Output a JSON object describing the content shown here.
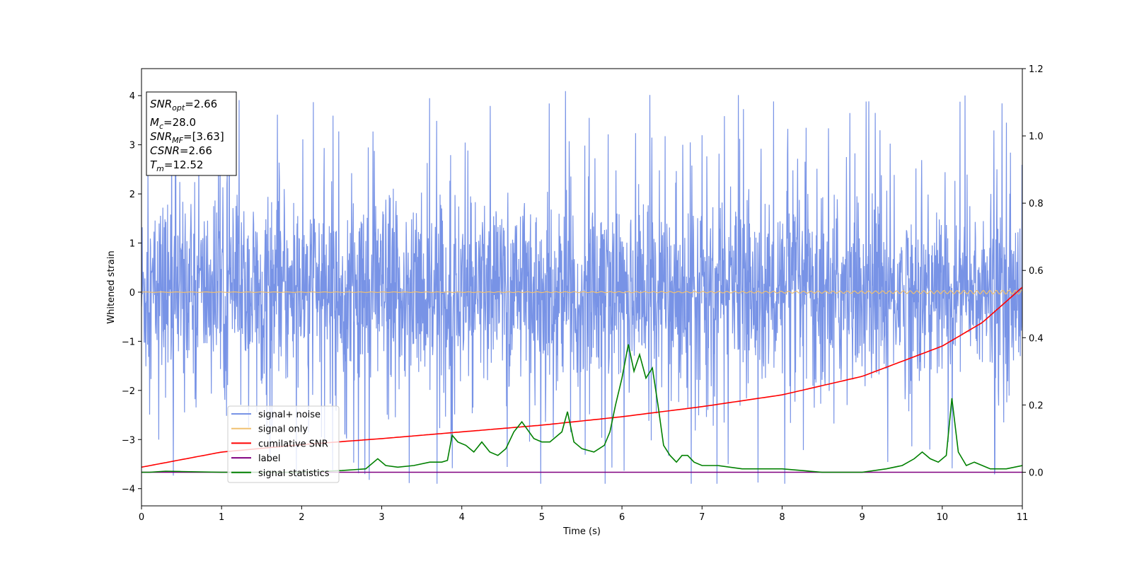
{
  "chart_data": {
    "type": "line",
    "xlabel": "Time (s)",
    "ylabel": "Whitened strain",
    "xlim": [
      0,
      11
    ],
    "ylim": [
      -4.35,
      4.55
    ],
    "y2lim": [
      -0.1,
      1.2
    ],
    "x_ticks": [
      0,
      1,
      2,
      3,
      4,
      5,
      6,
      7,
      8,
      9,
      10,
      11
    ],
    "y_ticks": [
      -4,
      -3,
      -2,
      -1,
      0,
      1,
      2,
      3,
      4
    ],
    "y2_ticks": [
      "0.0",
      "0.2",
      "0.4",
      "0.6",
      "0.8",
      "1.0",
      "1.2"
    ],
    "legend_placement": "lower-left",
    "info_box": [
      {
        "sym": "SNR",
        "sub": "opt",
        "val": "=2.66"
      },
      {
        "sym": "M",
        "sub": "c",
        "val": "=28.0"
      },
      {
        "sym": "SNR",
        "sub": "MF",
        "val": "=[3.63]"
      },
      {
        "sym": "CSNR",
        "sub": "",
        "val": "=2.66"
      },
      {
        "sym": "T",
        "sub": "m",
        "val": "=12.52"
      }
    ],
    "series": [
      {
        "name": "signal+ noise",
        "axis": "left",
        "color": "#7893e6",
        "description_values": "whitened noise, amplitude ~±2.3 with spikes to ±4",
        "noise_sigma": 1.0,
        "spike_max": 4.17,
        "spike_min": -3.9
      },
      {
        "name": "signal only",
        "axis": "left",
        "color": "#f0c070",
        "x_end": 11,
        "amp_start": 0.005,
        "amp_end": 0.04
      },
      {
        "name": "cumilative SNR",
        "axis": "right",
        "color": "#ff0000",
        "x": [
          0,
          1,
          2,
          3,
          4,
          5,
          6,
          7,
          8,
          9,
          10,
          10.5,
          11
        ],
        "y": [
          0.015,
          0.06,
          0.082,
          0.1,
          0.12,
          0.14,
          0.165,
          0.195,
          0.23,
          0.285,
          0.375,
          0.445,
          0.55
        ]
      },
      {
        "name": "label",
        "axis": "right",
        "color": "#800080",
        "x": [
          0,
          11
        ],
        "y": [
          0.0,
          0.0
        ]
      },
      {
        "name": "signal statistics",
        "axis": "right",
        "color": "#008000",
        "x": [
          0,
          0.1,
          0.3,
          0.5,
          1.0,
          1.5,
          2.0,
          2.5,
          2.8,
          2.95,
          3.05,
          3.2,
          3.4,
          3.6,
          3.75,
          3.82,
          3.88,
          3.95,
          4.05,
          4.15,
          4.25,
          4.35,
          4.45,
          4.55,
          4.65,
          4.75,
          4.9,
          5.0,
          5.1,
          5.25,
          5.32,
          5.4,
          5.5,
          5.65,
          5.78,
          5.85,
          5.92,
          6.0,
          6.08,
          6.15,
          6.22,
          6.3,
          6.38,
          6.45,
          6.52,
          6.6,
          6.68,
          6.75,
          6.82,
          6.9,
          7.0,
          7.2,
          7.5,
          8.0,
          8.5,
          9.0,
          9.3,
          9.5,
          9.65,
          9.75,
          9.85,
          9.95,
          10.05,
          10.12,
          10.2,
          10.3,
          10.4,
          10.6,
          10.8,
          11.0
        ],
        "y": [
          0.0,
          0.0,
          0.003,
          0.002,
          0.0,
          0.0,
          0.0,
          0.005,
          0.01,
          0.04,
          0.02,
          0.015,
          0.02,
          0.03,
          0.03,
          0.035,
          0.11,
          0.09,
          0.08,
          0.06,
          0.09,
          0.06,
          0.05,
          0.07,
          0.12,
          0.15,
          0.1,
          0.09,
          0.09,
          0.12,
          0.18,
          0.09,
          0.07,
          0.06,
          0.08,
          0.12,
          0.2,
          0.28,
          0.38,
          0.3,
          0.35,
          0.28,
          0.31,
          0.2,
          0.08,
          0.05,
          0.03,
          0.05,
          0.05,
          0.03,
          0.02,
          0.02,
          0.01,
          0.01,
          0.0,
          0.0,
          0.01,
          0.02,
          0.04,
          0.06,
          0.04,
          0.03,
          0.05,
          0.22,
          0.06,
          0.02,
          0.03,
          0.01,
          0.01,
          0.02
        ]
      }
    ]
  }
}
